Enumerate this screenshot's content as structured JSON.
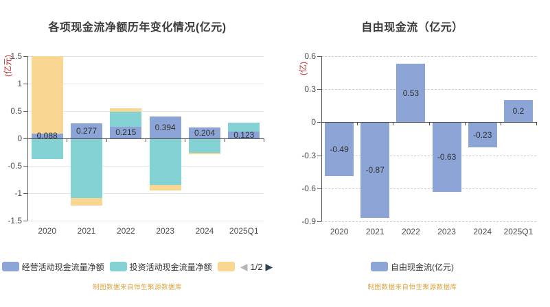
{
  "colors": {
    "axis_name_red": "#C4302E",
    "source_note_orange": "#D9A33D",
    "pager_prev_gray": "#B5B5B5",
    "pager_next_dark": "#2F4554"
  },
  "chart_data": [
    {
      "type": "bar",
      "stacked": true,
      "title": "各项现金流净额历年变化情况(亿元)",
      "y_axis_name": "(亿元)",
      "categories": [
        "2020",
        "2021",
        "2022",
        "2023",
        "2024",
        "2025Q1"
      ],
      "ylim": [
        -1.5,
        1.5
      ],
      "ytick_values": [
        1.5,
        1,
        0.5,
        0,
        -0.5,
        -1,
        -1.5
      ],
      "ytick_labels": [
        "1.5",
        "1",
        "0.5",
        "0",
        "-0.5",
        "-1",
        "-1.5"
      ],
      "grid_dashed": false,
      "legend_position": "bottom",
      "legend_pagination": {
        "prev_icon": "◀",
        "label": "1/2",
        "next_icon": "▶"
      },
      "source_note": "制图数据来自恒生聚源数据库",
      "series": [
        {
          "name": "经营活动现金流量净额",
          "color": "#8CA5D6",
          "values": [
            0.088,
            0.277,
            0.215,
            0.394,
            0.204,
            0.123
          ],
          "data_labels": [
            "0.088",
            "0.277",
            "0.215",
            "0.394",
            "0.204",
            "0.123"
          ]
        },
        {
          "name": "投资活动现金流量净额",
          "color": "#85D2D5",
          "values": [
            -0.38,
            -1.09,
            0.27,
            -0.85,
            -0.26,
            0.16
          ],
          "estimated": true
        },
        {
          "name": "",
          "color": "#FAD693",
          "values": [
            1.42,
            -0.13,
            0.06,
            -0.1,
            -0.03,
            0
          ],
          "estimated": true,
          "clipped_at_ymax": [
            true,
            false,
            false,
            false,
            false,
            false
          ]
        }
      ]
    },
    {
      "type": "bar",
      "stacked": false,
      "title": "自由现金流（亿元）",
      "y_axis_name": "(亿)",
      "categories": [
        "2020",
        "2021",
        "2022",
        "2023",
        "2024",
        "2025Q1"
      ],
      "ylim": [
        -0.9,
        0.6
      ],
      "ytick_values": [
        0.6,
        0.3,
        0,
        -0.3,
        -0.6,
        -0.9
      ],
      "ytick_labels": [
        "0.6",
        "0.3",
        "0",
        "-0.3",
        "-0.6",
        "-0.9"
      ],
      "grid_dashed": true,
      "legend_position": "bottom",
      "source_note": "制图数据来自恒生聚源数据库",
      "series": [
        {
          "name": "自由现金流(亿元)",
          "color": "#8CA5D6",
          "values": [
            -0.49,
            -0.87,
            0.53,
            -0.63,
            -0.23,
            0.2
          ],
          "data_labels": [
            "-0.49",
            "-0.87",
            "0.53",
            "-0.63",
            "-0.23",
            "0.2"
          ]
        }
      ]
    }
  ]
}
